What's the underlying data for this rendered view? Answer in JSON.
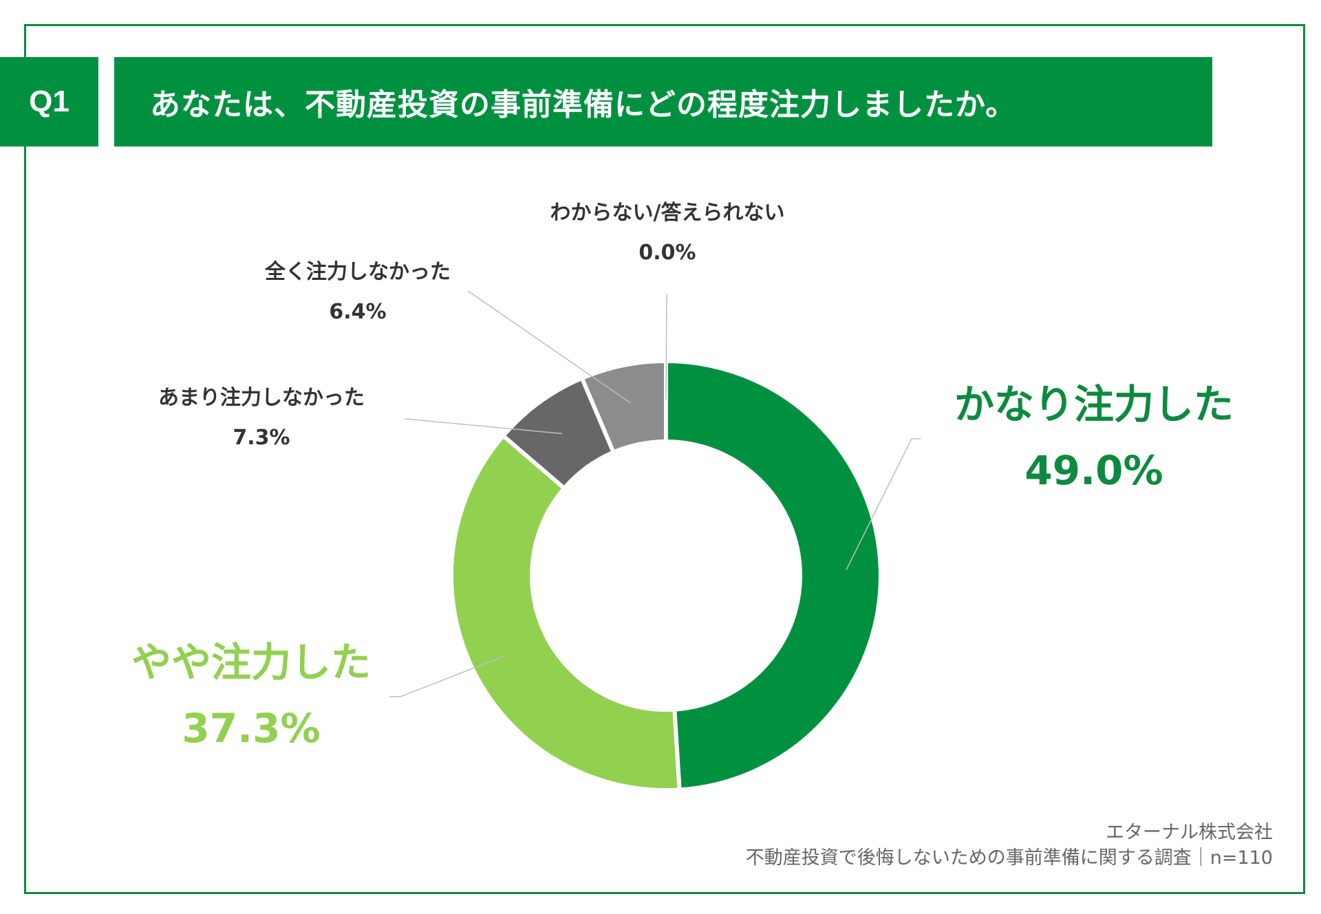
{
  "header": {
    "badge": "Q1",
    "question": "あなたは、不動産投資の事前準備にどの程度注力しましたか。"
  },
  "chart_data": {
    "type": "pie",
    "donut": true,
    "categories": [
      "かなり注力した",
      "やや注力した",
      "あまり注力しなかった",
      "全く注力しなかった",
      "わからない/答えられない"
    ],
    "values": [
      49.0,
      37.3,
      7.3,
      6.4,
      0.0
    ],
    "value_labels": [
      "49.0%",
      "37.3%",
      "7.3%",
      "6.4%",
      "0.0%"
    ],
    "colors": [
      "#009140",
      "#92d050",
      "#676767",
      "#8c8c8c",
      "#bfbfbf"
    ],
    "legend": "none"
  },
  "footer": {
    "company": "エターナル株式会社",
    "survey": "不動産投資で後悔しないための事前準備に関する調査｜n=110"
  }
}
